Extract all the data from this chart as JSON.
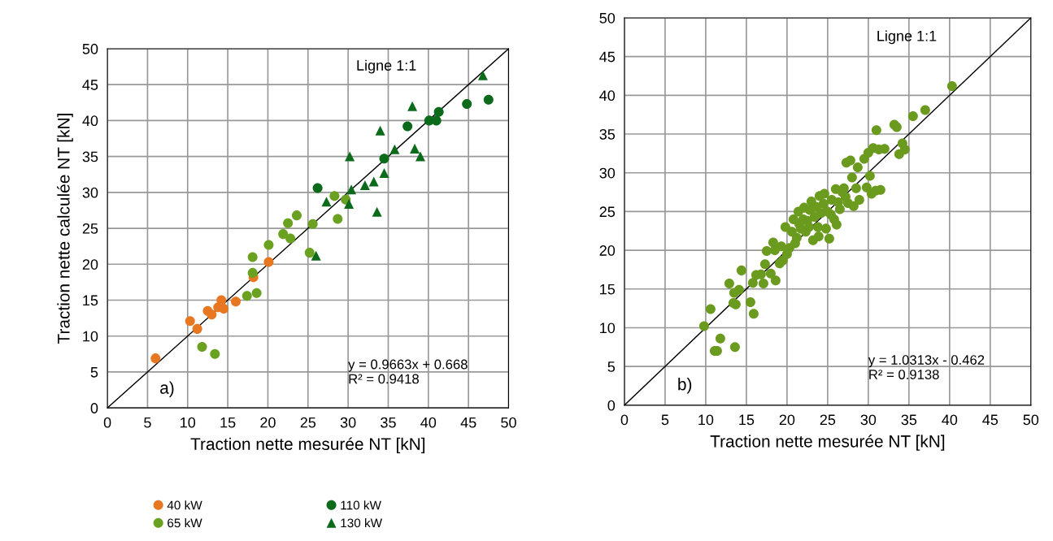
{
  "chart_data": [
    {
      "type": "scatter",
      "xlabel": "Traction nette mesurée NT [kN]",
      "ylabel": "Traction nette calculée NT [kN]",
      "xlim": [
        0,
        50
      ],
      "ylim": [
        0,
        50
      ],
      "xticks": [
        0,
        5,
        10,
        15,
        20,
        25,
        30,
        35,
        40,
        45,
        50
      ],
      "yticks": [
        0,
        5,
        10,
        15,
        20,
        25,
        30,
        35,
        40,
        45,
        50
      ],
      "grid": true,
      "legend": "bottom",
      "marker": "circle",
      "annotations": [
        "Ligne 1:1",
        "y = 0.9663x + 0.668\nR² = 0.9418",
        "a)"
      ],
      "series": [
        {
          "type": "line",
          "color": "#000000",
          "x": [
            0,
            50
          ],
          "values": [
            0,
            50
          ],
          "marker": "none"
        },
        {
          "name": "40 kW",
          "color": "#e87722",
          "x": [
            6,
            10.3,
            11.2,
            12.5,
            13,
            13.8,
            14.2,
            14.5,
            16,
            18.2,
            20.1
          ],
          "values": [
            6.9,
            12.1,
            11,
            13.5,
            13,
            14,
            15,
            13.8,
            14.8,
            18.2,
            20.3
          ]
        },
        {
          "name": "65 kW",
          "color": "#6aa121",
          "x": [
            11.8,
            13.4,
            17.4,
            18.6,
            18.1,
            18.1,
            20.1,
            21.9,
            22.5,
            22.8,
            23.6,
            25.2,
            25.6,
            28.3,
            28.7,
            29.7
          ],
          "values": [
            8.5,
            7.5,
            15.6,
            16,
            18.8,
            21,
            22.7,
            24.2,
            25.7,
            23.6,
            26.8,
            21.6,
            25.6,
            29.5,
            26.3,
            29
          ]
        },
        {
          "name": "110 kW",
          "color": "#0b6b1b",
          "x": [
            26.2,
            34.5,
            37.4,
            40.1,
            41,
            41.3,
            44.8,
            47.5
          ],
          "values": [
            30.6,
            34.7,
            39.2,
            40,
            40,
            41.2,
            42.3,
            42.9
          ]
        },
        {
          "name": "130 kW",
          "color": "#0b6b1b",
          "marker": "triangle",
          "x": [
            26,
            27.3,
            30.2,
            30.1,
            30.4,
            32.1,
            33.2,
            33.6,
            34,
            34.5,
            35.8,
            38,
            38.3,
            39,
            46.8
          ],
          "values": [
            21.2,
            28.7,
            35,
            28.4,
            30.4,
            31,
            31.5,
            27.3,
            38.6,
            32.7,
            36,
            42,
            36.1,
            35,
            46.3
          ]
        }
      ]
    },
    {
      "type": "scatter",
      "xlabel": "Traction nette mesurée NT [kN]",
      "xlim": [
        0,
        50
      ],
      "ylim": [
        0,
        50
      ],
      "xticks": [
        0,
        5,
        10,
        15,
        20,
        25,
        30,
        35,
        40,
        45,
        50
      ],
      "yticks": [
        0,
        5,
        10,
        15,
        20,
        25,
        30,
        35,
        40,
        45,
        50
      ],
      "grid": true,
      "marker": "circle",
      "annotations": [
        "Ligne 1:1",
        "y = 1.0313x - 0.462\nR² = 0.9138",
        "b)"
      ],
      "series": [
        {
          "type": "line",
          "color": "#000000",
          "x": [
            0,
            50
          ],
          "values": [
            0,
            50
          ],
          "marker": "none"
        },
        {
          "color": "#6a9b1e",
          "x": [
            9.8,
            10.6,
            11.1,
            11.4,
            11.8,
            13.6,
            12.9,
            13.4,
            13.7,
            14.1,
            13.5,
            14.4,
            15.5,
            15.9,
            15.8,
            16.2,
            16.8,
            17.1,
            17.3,
            17.5,
            18.0,
            18.3,
            18.5,
            18.6,
            19.1,
            19.3,
            19.8,
            20.0,
            20.3,
            20.6,
            20.8,
            21.0,
            21.2,
            21.5,
            21.7,
            22.0,
            22.1,
            22.3,
            22.5,
            22.8,
            23.0,
            23.2,
            23.4,
            23.6,
            23.8,
            24.0,
            24.2,
            24.5,
            24.8,
            25.0,
            25.2,
            25.5,
            25.8,
            26.0,
            26.3,
            26.5,
            26.8,
            27.0,
            27.3,
            27.5,
            27.8,
            28.0,
            28.2,
            28.5,
            28.7,
            28.9,
            29.5,
            29.8,
            30.0,
            30.2,
            30.4,
            30.6,
            30.9,
            31.0,
            31.3,
            31.5,
            32.0,
            33.2,
            33.5,
            33.8,
            34.2,
            34.5,
            35.5,
            37.0,
            40.3,
            21.4,
            22.7,
            24.6,
            26.1,
            27.2,
            19.5,
            23.9,
            25.4
          ],
          "values": [
            10.2,
            12.4,
            7,
            7,
            8.6,
            7.5,
            15.7,
            13.2,
            13.0,
            14.9,
            14.5,
            17.4,
            13.3,
            11.8,
            15.8,
            16.8,
            16.9,
            15.7,
            18.2,
            19.9,
            17.0,
            21.0,
            20.0,
            16.1,
            18.3,
            20.5,
            23.0,
            19.5,
            20.3,
            22.4,
            24.0,
            20.9,
            21.6,
            23.4,
            22.8,
            24.0,
            25.5,
            22.4,
            23.8,
            25.2,
            26.3,
            21.3,
            24.3,
            25.6,
            23.0,
            27.0,
            24.8,
            26.0,
            22.8,
            25.0,
            21.5,
            26.5,
            24.0,
            27.9,
            26.2,
            25.3,
            27.5,
            28.0,
            31.3,
            26.1,
            31.6,
            29.4,
            25.7,
            28.0,
            30.7,
            26.5,
            31.8,
            28.1,
            32.6,
            29.6,
            27.3,
            33.2,
            27.7,
            35.5,
            33.0,
            27.8,
            33.1,
            36.2,
            35.9,
            32.4,
            33.8,
            33.0,
            37.3,
            38.1,
            41.2,
            25.0,
            23.0,
            27.3,
            23.3,
            26.9,
            18.7,
            21.8,
            24.6
          ]
        }
      ]
    }
  ]
}
